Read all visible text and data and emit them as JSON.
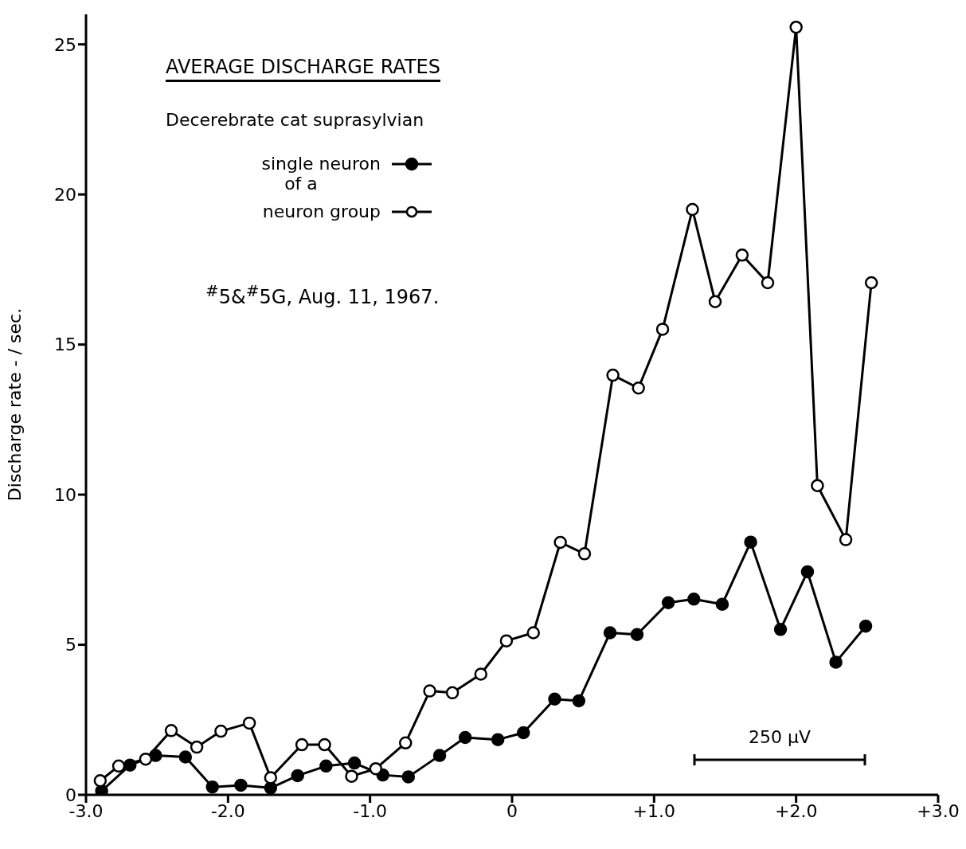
{
  "chart_data": {
    "type": "line",
    "title": "AVERAGE DISCHARGE RATES",
    "subtitle": "Decerebrate cat suprasylvian",
    "ylabel": "Discharge rate  -  / sec.",
    "annotations": [
      "of a",
      "$^{#}$5&$^{#}$5G, Aug. 11, 1967.",
      "250 µV"
    ],
    "xlim": [
      -3.0,
      3.0
    ],
    "xticks": [
      {
        "value": -3,
        "label": "-3.0"
      },
      {
        "value": -2,
        "label": "-2.0"
      },
      {
        "value": -1,
        "label": "-1.0"
      },
      0,
      {
        "value": 1,
        "label": "+1.0"
      },
      {
        "value": 2,
        "label": "+2.0"
      },
      {
        "value": 3,
        "label": "+3.0"
      }
    ],
    "ylim": [
      0,
      26
    ],
    "yticks": [
      0,
      5,
      10,
      15,
      20,
      25
    ],
    "grid": false,
    "legend": "top left",
    "marker": "circle",
    "line_style": "solid",
    "series": [
      {
        "name": "single neuron",
        "color": "#000000",
        "x": [
          -2.89,
          -2.69,
          -2.51,
          -2.3,
          -2.11,
          -1.91,
          -1.7,
          -1.51,
          -1.31,
          -1.11,
          -0.91,
          -0.73,
          -0.51,
          -0.33,
          -0.1,
          0.08,
          0.3,
          0.47,
          0.69,
          0.88,
          1.1,
          1.28,
          1.48,
          1.68,
          1.89,
          2.08,
          2.28,
          2.49
        ],
        "values": [
          0.13,
          0.99,
          1.31,
          1.26,
          0.26,
          0.32,
          0.23,
          0.64,
          0.96,
          1.06,
          0.66,
          0.6,
          1.31,
          1.91,
          1.84,
          2.07,
          3.19,
          3.13,
          5.4,
          5.34,
          6.4,
          6.52,
          6.35,
          8.42,
          5.51,
          7.43,
          4.42,
          5.62
        ]
      },
      {
        "name": "neuron group",
        "color": "#000000",
        "x": [
          -2.9,
          -2.77,
          -2.58,
          -2.4,
          -2.22,
          -2.05,
          -1.85,
          -1.7,
          -1.48,
          -1.32,
          -1.13,
          -0.96,
          -0.75,
          -0.58,
          -0.42,
          -0.22,
          -0.04,
          0.15,
          0.34,
          0.51,
          0.71,
          0.89,
          1.06,
          1.27,
          1.43,
          1.62,
          1.8,
          2.0,
          2.15,
          2.35,
          2.53
        ],
        "values": [
          0.47,
          0.96,
          1.19,
          2.14,
          1.59,
          2.12,
          2.39,
          0.57,
          1.67,
          1.67,
          0.62,
          0.87,
          1.73,
          3.46,
          3.4,
          4.02,
          5.13,
          5.4,
          8.41,
          8.03,
          13.98,
          13.55,
          15.51,
          19.5,
          16.43,
          17.98,
          17.06,
          25.57,
          10.3,
          8.5,
          17.06
        ]
      }
    ]
  }
}
